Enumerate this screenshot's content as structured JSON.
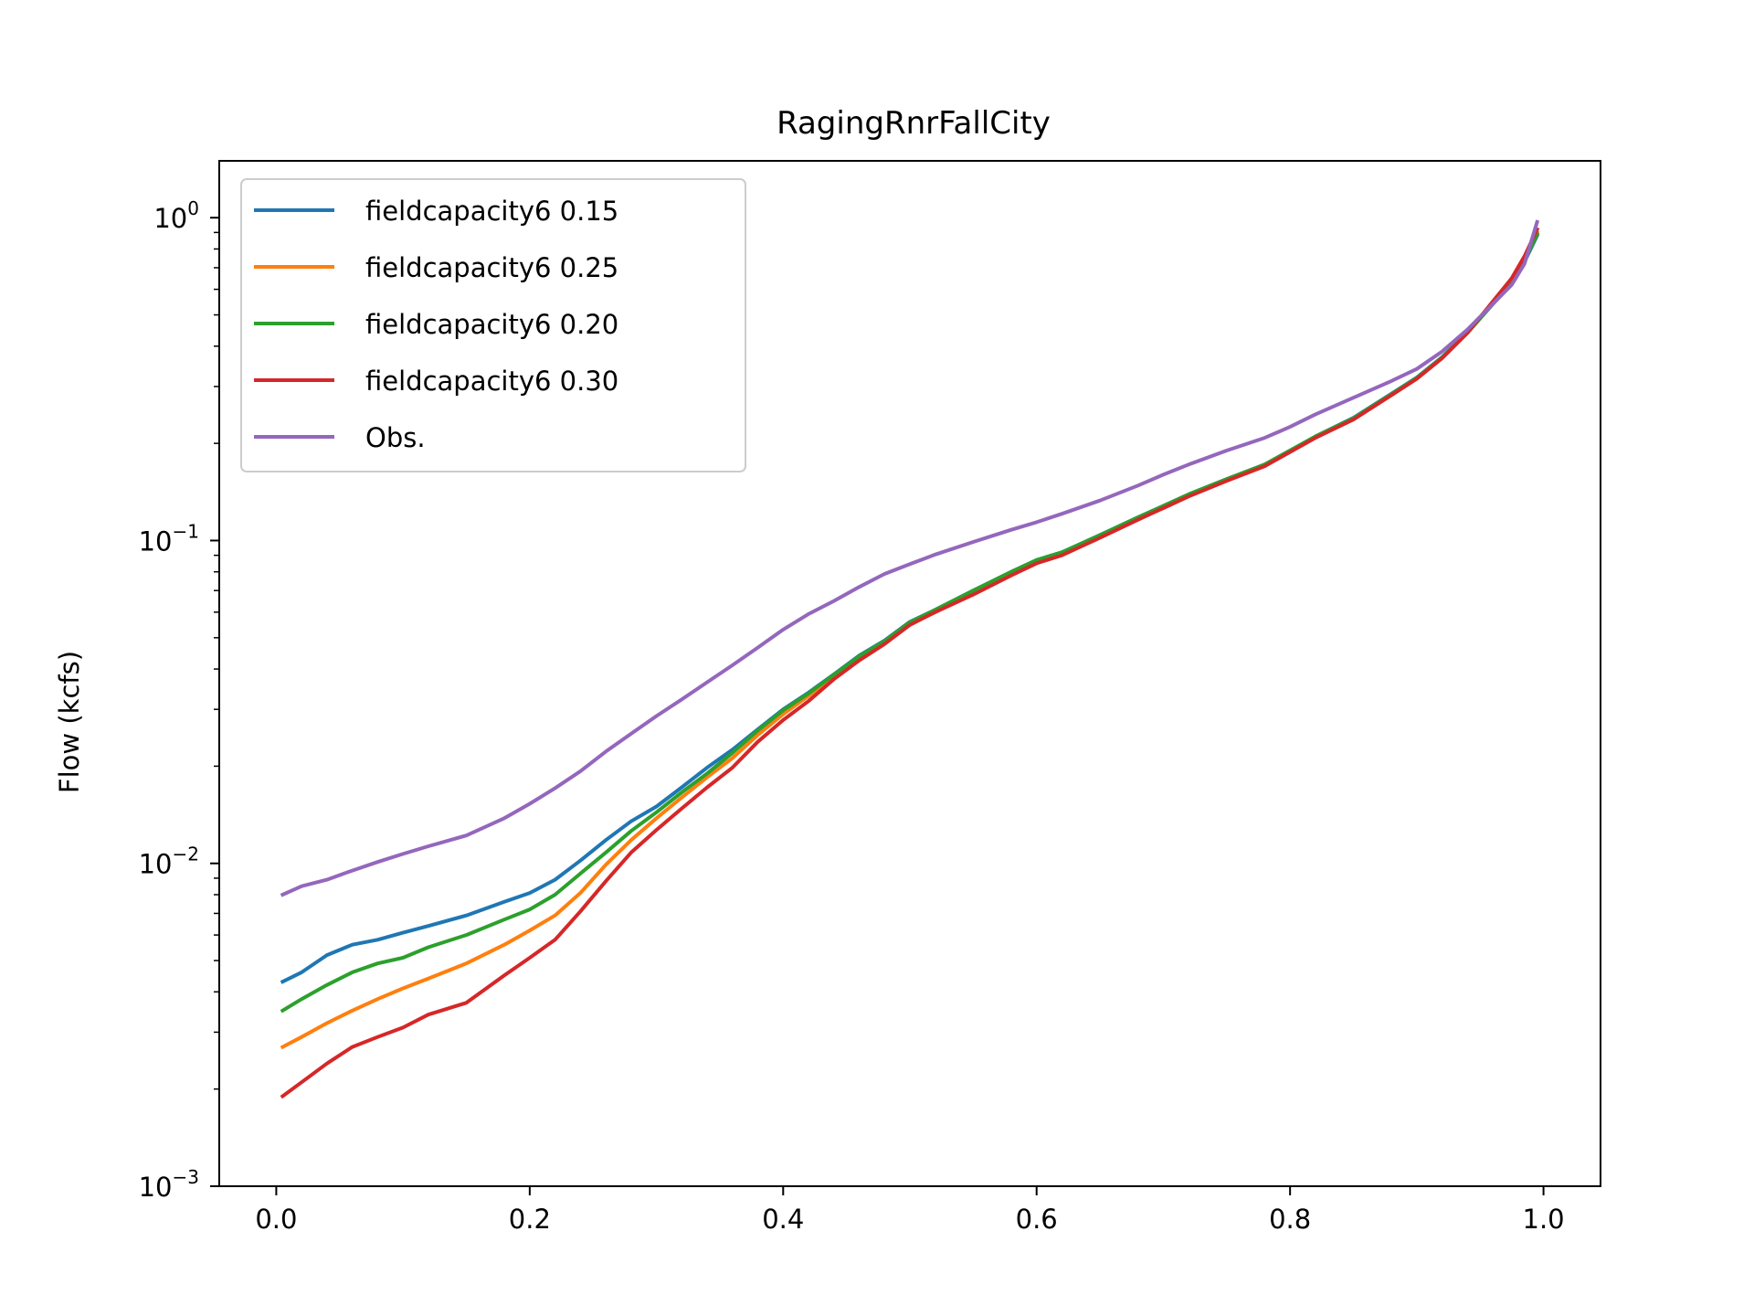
{
  "chart_data": {
    "type": "line",
    "title": "RagingRnrFallCity",
    "xlabel": "",
    "ylabel": "Flow (kcfs)",
    "xlim": [
      -0.045,
      1.045
    ],
    "ylim": [
      0.001,
      1.5
    ],
    "yscale": "log",
    "grid": false,
    "legend_position": "top-left",
    "x_ticks": [
      "0.0",
      "0.2",
      "0.4",
      "0.6",
      "0.8",
      "1.0"
    ],
    "x_tick_values": [
      0,
      0.2,
      0.4,
      0.6,
      0.8,
      1.0
    ],
    "y_ticks": [
      {
        "value": 1,
        "base": "10",
        "exp": "0"
      },
      {
        "value": 0.1,
        "base": "10",
        "exp": "−1"
      },
      {
        "value": 0.01,
        "base": "10",
        "exp": "−2"
      },
      {
        "value": 0.001,
        "base": "10",
        "exp": "−3"
      }
    ],
    "series": [
      {
        "name": "fieldcapacity6 0.15",
        "color": "#1f77b4",
        "points": [
          [
            0.005,
            0.0043
          ],
          [
            0.02,
            0.0046
          ],
          [
            0.04,
            0.0052
          ],
          [
            0.06,
            0.0056
          ],
          [
            0.08,
            0.0058
          ],
          [
            0.1,
            0.0061
          ],
          [
            0.12,
            0.0064
          ],
          [
            0.15,
            0.0069
          ],
          [
            0.18,
            0.0076
          ],
          [
            0.2,
            0.0081
          ],
          [
            0.22,
            0.0089
          ],
          [
            0.24,
            0.0102
          ],
          [
            0.26,
            0.0118
          ],
          [
            0.28,
            0.0135
          ],
          [
            0.3,
            0.015
          ],
          [
            0.32,
            0.0172
          ],
          [
            0.34,
            0.0198
          ],
          [
            0.36,
            0.0225
          ],
          [
            0.38,
            0.026
          ],
          [
            0.4,
            0.03
          ],
          [
            0.42,
            0.0338
          ],
          [
            0.44,
            0.0385
          ],
          [
            0.46,
            0.044
          ],
          [
            0.48,
            0.049
          ],
          [
            0.5,
            0.056
          ],
          [
            0.52,
            0.061
          ],
          [
            0.55,
            0.07
          ],
          [
            0.58,
            0.08
          ],
          [
            0.6,
            0.087
          ],
          [
            0.62,
            0.092
          ],
          [
            0.65,
            0.104
          ],
          [
            0.68,
            0.118
          ],
          [
            0.7,
            0.128
          ],
          [
            0.72,
            0.139
          ],
          [
            0.75,
            0.155
          ],
          [
            0.78,
            0.172
          ],
          [
            0.8,
            0.19
          ],
          [
            0.82,
            0.21
          ],
          [
            0.85,
            0.24
          ],
          [
            0.88,
            0.285
          ],
          [
            0.9,
            0.32
          ],
          [
            0.92,
            0.37
          ],
          [
            0.94,
            0.44
          ],
          [
            0.96,
            0.54
          ],
          [
            0.975,
            0.63
          ],
          [
            0.985,
            0.73
          ],
          [
            0.995,
            0.88
          ]
        ]
      },
      {
        "name": "fieldcapacity6 0.25",
        "color": "#ff7f0e",
        "points": [
          [
            0.005,
            0.0027
          ],
          [
            0.02,
            0.0029
          ],
          [
            0.04,
            0.0032
          ],
          [
            0.06,
            0.0035
          ],
          [
            0.08,
            0.0038
          ],
          [
            0.1,
            0.0041
          ],
          [
            0.12,
            0.0044
          ],
          [
            0.15,
            0.0049
          ],
          [
            0.18,
            0.0056
          ],
          [
            0.2,
            0.0062
          ],
          [
            0.22,
            0.0069
          ],
          [
            0.24,
            0.0081
          ],
          [
            0.26,
            0.0099
          ],
          [
            0.28,
            0.0118
          ],
          [
            0.3,
            0.0138
          ],
          [
            0.32,
            0.016
          ],
          [
            0.34,
            0.0185
          ],
          [
            0.36,
            0.0212
          ],
          [
            0.38,
            0.025
          ],
          [
            0.4,
            0.029
          ],
          [
            0.42,
            0.033
          ],
          [
            0.44,
            0.038
          ],
          [
            0.46,
            0.043
          ],
          [
            0.48,
            0.048
          ],
          [
            0.5,
            0.055
          ],
          [
            0.52,
            0.06
          ],
          [
            0.55,
            0.069
          ],
          [
            0.58,
            0.079
          ],
          [
            0.6,
            0.086
          ],
          [
            0.62,
            0.091
          ],
          [
            0.65,
            0.103
          ],
          [
            0.68,
            0.117
          ],
          [
            0.7,
            0.127
          ],
          [
            0.72,
            0.138
          ],
          [
            0.75,
            0.154
          ],
          [
            0.78,
            0.171
          ],
          [
            0.8,
            0.189
          ],
          [
            0.82,
            0.209
          ],
          [
            0.85,
            0.238
          ],
          [
            0.88,
            0.283
          ],
          [
            0.9,
            0.318
          ],
          [
            0.92,
            0.368
          ],
          [
            0.94,
            0.44
          ],
          [
            0.96,
            0.54
          ],
          [
            0.975,
            0.635
          ],
          [
            0.985,
            0.74
          ],
          [
            0.995,
            0.9
          ]
        ]
      },
      {
        "name": "fieldcapacity6 0.20",
        "color": "#2ca02c",
        "points": [
          [
            0.005,
            0.0035
          ],
          [
            0.02,
            0.0038
          ],
          [
            0.04,
            0.0042
          ],
          [
            0.06,
            0.0046
          ],
          [
            0.08,
            0.0049
          ],
          [
            0.1,
            0.0051
          ],
          [
            0.12,
            0.0055
          ],
          [
            0.15,
            0.006
          ],
          [
            0.18,
            0.0067
          ],
          [
            0.2,
            0.0072
          ],
          [
            0.22,
            0.008
          ],
          [
            0.24,
            0.0093
          ],
          [
            0.26,
            0.0108
          ],
          [
            0.28,
            0.0126
          ],
          [
            0.3,
            0.0144
          ],
          [
            0.32,
            0.0166
          ],
          [
            0.34,
            0.019
          ],
          [
            0.36,
            0.022
          ],
          [
            0.38,
            0.0258
          ],
          [
            0.4,
            0.0298
          ],
          [
            0.42,
            0.0336
          ],
          [
            0.44,
            0.0384
          ],
          [
            0.46,
            0.0438
          ],
          [
            0.48,
            0.0488
          ],
          [
            0.5,
            0.0558
          ],
          [
            0.52,
            0.061
          ],
          [
            0.55,
            0.07
          ],
          [
            0.58,
            0.08
          ],
          [
            0.6,
            0.087
          ],
          [
            0.62,
            0.092
          ],
          [
            0.65,
            0.104
          ],
          [
            0.68,
            0.118
          ],
          [
            0.7,
            0.128
          ],
          [
            0.72,
            0.139
          ],
          [
            0.75,
            0.155
          ],
          [
            0.78,
            0.172
          ],
          [
            0.8,
            0.19
          ],
          [
            0.82,
            0.21
          ],
          [
            0.85,
            0.239
          ],
          [
            0.88,
            0.284
          ],
          [
            0.9,
            0.319
          ],
          [
            0.92,
            0.369
          ],
          [
            0.94,
            0.44
          ],
          [
            0.96,
            0.54
          ],
          [
            0.975,
            0.632
          ],
          [
            0.985,
            0.735
          ],
          [
            0.995,
            0.89
          ]
        ]
      },
      {
        "name": "fieldcapacity6 0.30",
        "color": "#d62728",
        "points": [
          [
            0.005,
            0.0019
          ],
          [
            0.02,
            0.0021
          ],
          [
            0.04,
            0.0024
          ],
          [
            0.06,
            0.0027
          ],
          [
            0.08,
            0.0029
          ],
          [
            0.1,
            0.0031
          ],
          [
            0.12,
            0.0034
          ],
          [
            0.15,
            0.0037
          ],
          [
            0.18,
            0.0045
          ],
          [
            0.2,
            0.0051
          ],
          [
            0.22,
            0.0058
          ],
          [
            0.24,
            0.0071
          ],
          [
            0.26,
            0.0088
          ],
          [
            0.28,
            0.0108
          ],
          [
            0.3,
            0.0127
          ],
          [
            0.32,
            0.0148
          ],
          [
            0.34,
            0.0172
          ],
          [
            0.36,
            0.0198
          ],
          [
            0.38,
            0.0238
          ],
          [
            0.4,
            0.0278
          ],
          [
            0.42,
            0.0318
          ],
          [
            0.44,
            0.0372
          ],
          [
            0.46,
            0.0425
          ],
          [
            0.48,
            0.0478
          ],
          [
            0.5,
            0.0548
          ],
          [
            0.52,
            0.06
          ],
          [
            0.55,
            0.068
          ],
          [
            0.58,
            0.078
          ],
          [
            0.6,
            0.085
          ],
          [
            0.62,
            0.09
          ],
          [
            0.65,
            0.102
          ],
          [
            0.68,
            0.116
          ],
          [
            0.7,
            0.126
          ],
          [
            0.72,
            0.137
          ],
          [
            0.75,
            0.153
          ],
          [
            0.78,
            0.17
          ],
          [
            0.8,
            0.188
          ],
          [
            0.82,
            0.208
          ],
          [
            0.85,
            0.237
          ],
          [
            0.88,
            0.282
          ],
          [
            0.9,
            0.317
          ],
          [
            0.92,
            0.367
          ],
          [
            0.94,
            0.44
          ],
          [
            0.96,
            0.55
          ],
          [
            0.975,
            0.65
          ],
          [
            0.985,
            0.76
          ],
          [
            0.995,
            0.92
          ]
        ]
      },
      {
        "name": "Obs.",
        "color": "#9467bd",
        "points": [
          [
            0.005,
            0.008
          ],
          [
            0.02,
            0.0085
          ],
          [
            0.04,
            0.0089
          ],
          [
            0.06,
            0.0095
          ],
          [
            0.08,
            0.0101
          ],
          [
            0.1,
            0.0107
          ],
          [
            0.12,
            0.0113
          ],
          [
            0.15,
            0.0122
          ],
          [
            0.18,
            0.0138
          ],
          [
            0.2,
            0.0153
          ],
          [
            0.22,
            0.0171
          ],
          [
            0.24,
            0.0193
          ],
          [
            0.26,
            0.0222
          ],
          [
            0.28,
            0.0252
          ],
          [
            0.3,
            0.0286
          ],
          [
            0.32,
            0.0322
          ],
          [
            0.34,
            0.0364
          ],
          [
            0.36,
            0.0411
          ],
          [
            0.38,
            0.0466
          ],
          [
            0.4,
            0.053
          ],
          [
            0.42,
            0.0592
          ],
          [
            0.44,
            0.065
          ],
          [
            0.46,
            0.0718
          ],
          [
            0.48,
            0.0788
          ],
          [
            0.5,
            0.0845
          ],
          [
            0.52,
            0.0905
          ],
          [
            0.55,
            0.099
          ],
          [
            0.58,
            0.108
          ],
          [
            0.6,
            0.114
          ],
          [
            0.62,
            0.121
          ],
          [
            0.65,
            0.133
          ],
          [
            0.68,
            0.148
          ],
          [
            0.7,
            0.16
          ],
          [
            0.72,
            0.172
          ],
          [
            0.75,
            0.19
          ],
          [
            0.78,
            0.208
          ],
          [
            0.8,
            0.225
          ],
          [
            0.82,
            0.246
          ],
          [
            0.85,
            0.277
          ],
          [
            0.88,
            0.312
          ],
          [
            0.9,
            0.34
          ],
          [
            0.92,
            0.385
          ],
          [
            0.94,
            0.45
          ],
          [
            0.96,
            0.54
          ],
          [
            0.975,
            0.62
          ],
          [
            0.985,
            0.72
          ],
          [
            0.995,
            0.97
          ]
        ]
      }
    ]
  }
}
